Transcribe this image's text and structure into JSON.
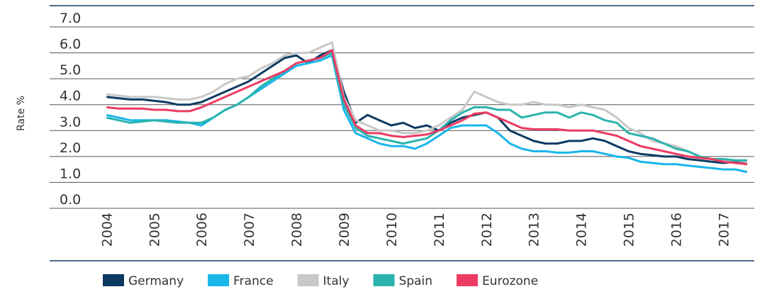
{
  "chart_data": {
    "type": "line",
    "y_label": "Rate %",
    "x": [
      2004,
      2004.25,
      2004.5,
      2004.75,
      2005,
      2005.25,
      2005.5,
      2005.75,
      2006,
      2006.25,
      2006.5,
      2006.75,
      2007,
      2007.25,
      2007.5,
      2007.75,
      2008,
      2008.25,
      2008.5,
      2008.75,
      2009,
      2009.25,
      2009.5,
      2009.75,
      2010,
      2010.25,
      2010.5,
      2010.75,
      2011,
      2011.25,
      2011.5,
      2011.75,
      2012,
      2012.25,
      2012.5,
      2012.75,
      2013,
      2013.25,
      2013.5,
      2013.75,
      2014,
      2014.25,
      2014.5,
      2014.75,
      2015,
      2015.25,
      2015.5,
      2015.75,
      2016,
      2016.25,
      2016.5,
      2016.75,
      2017,
      2017.25,
      2017.5
    ],
    "xlim": [
      2002.8,
      2017.65
    ],
    "xticks": [
      2004,
      2005,
      2006,
      2007,
      2008,
      2009,
      2010,
      2011,
      2012,
      2013,
      2014,
      2015,
      2016,
      2017
    ],
    "ylim": [
      0,
      7
    ],
    "yticks": [
      {
        "value": 0,
        "label": "0.0"
      },
      {
        "value": 1,
        "label": "1.0"
      },
      {
        "value": 2,
        "label": "2.0"
      },
      {
        "value": 3,
        "label": "3.0"
      },
      {
        "value": 4,
        "label": "4.0"
      },
      {
        "value": 5,
        "label": "5.0"
      },
      {
        "value": 6,
        "label": "6.0"
      },
      {
        "value": 7,
        "label": "7.0"
      }
    ],
    "grid": true,
    "series": [
      {
        "name": "Germany",
        "color": "#0d3a63",
        "values": [
          4.3,
          4.25,
          4.2,
          4.2,
          4.15,
          4.1,
          4.0,
          4.0,
          4.1,
          4.3,
          4.5,
          4.7,
          4.9,
          5.2,
          5.5,
          5.8,
          5.9,
          5.6,
          5.9,
          6.1,
          4.5,
          3.3,
          3.6,
          3.4,
          3.2,
          3.3,
          3.1,
          3.2,
          3.0,
          3.3,
          3.5,
          3.6,
          3.7,
          3.5,
          3.0,
          2.8,
          2.6,
          2.5,
          2.5,
          2.6,
          2.6,
          2.7,
          2.6,
          2.4,
          2.2,
          2.1,
          2.05,
          2.0,
          2.0,
          1.9,
          1.85,
          1.8,
          1.75,
          1.8,
          1.7
        ]
      },
      {
        "name": "France",
        "color": "#19b6ea",
        "values": [
          3.6,
          3.5,
          3.4,
          3.4,
          3.4,
          3.4,
          3.35,
          3.3,
          3.2,
          3.5,
          3.8,
          4.0,
          4.3,
          4.6,
          4.9,
          5.2,
          5.5,
          5.6,
          5.7,
          5.9,
          3.8,
          2.9,
          2.7,
          2.5,
          2.4,
          2.4,
          2.3,
          2.5,
          2.8,
          3.1,
          3.2,
          3.2,
          3.2,
          2.9,
          2.5,
          2.3,
          2.2,
          2.2,
          2.15,
          2.15,
          2.2,
          2.2,
          2.1,
          2.0,
          1.95,
          1.8,
          1.75,
          1.7,
          1.7,
          1.65,
          1.6,
          1.55,
          1.5,
          1.5,
          1.4
        ]
      },
      {
        "name": "Italy",
        "color": "#c8c8c8",
        "values": [
          4.4,
          4.35,
          4.3,
          4.3,
          4.3,
          4.25,
          4.2,
          4.2,
          4.3,
          4.5,
          4.8,
          5.0,
          5.1,
          5.4,
          5.6,
          5.9,
          6.0,
          6.0,
          6.2,
          6.4,
          4.3,
          3.4,
          3.2,
          3.0,
          3.0,
          2.9,
          2.9,
          3.0,
          3.2,
          3.5,
          3.8,
          4.5,
          4.3,
          4.1,
          4.0,
          4.0,
          4.1,
          4.0,
          4.0,
          3.9,
          4.0,
          3.9,
          3.8,
          3.5,
          3.1,
          2.9,
          2.6,
          2.5,
          2.4,
          2.2,
          2.0,
          1.9,
          1.85,
          1.85,
          1.8
        ]
      },
      {
        "name": "Spain",
        "color": "#2ab3ad",
        "values": [
          3.5,
          3.4,
          3.3,
          3.35,
          3.4,
          3.35,
          3.3,
          3.3,
          3.3,
          3.5,
          3.8,
          4.0,
          4.3,
          4.7,
          5.0,
          5.3,
          5.6,
          5.7,
          5.8,
          6.0,
          4.0,
          3.1,
          2.8,
          2.7,
          2.6,
          2.5,
          2.6,
          2.7,
          3.0,
          3.4,
          3.7,
          3.9,
          3.9,
          3.8,
          3.8,
          3.5,
          3.6,
          3.7,
          3.7,
          3.5,
          3.7,
          3.6,
          3.4,
          3.3,
          2.9,
          2.8,
          2.7,
          2.5,
          2.3,
          2.2,
          2.0,
          1.9,
          1.9,
          1.85,
          1.85
        ]
      },
      {
        "name": "Eurozone",
        "color": "#ec3b63",
        "values": [
          3.9,
          3.85,
          3.85,
          3.85,
          3.8,
          3.8,
          3.75,
          3.75,
          3.9,
          4.1,
          4.3,
          4.5,
          4.7,
          4.9,
          5.1,
          5.3,
          5.6,
          5.7,
          5.8,
          6.1,
          4.2,
          3.2,
          2.9,
          2.9,
          2.8,
          2.75,
          2.8,
          2.85,
          3.0,
          3.2,
          3.4,
          3.65,
          3.7,
          3.5,
          3.3,
          3.1,
          3.05,
          3.05,
          3.05,
          3.0,
          3.0,
          3.0,
          2.9,
          2.8,
          2.6,
          2.4,
          2.3,
          2.2,
          2.1,
          2.0,
          1.95,
          1.9,
          1.8,
          1.75,
          1.7
        ]
      }
    ]
  }
}
